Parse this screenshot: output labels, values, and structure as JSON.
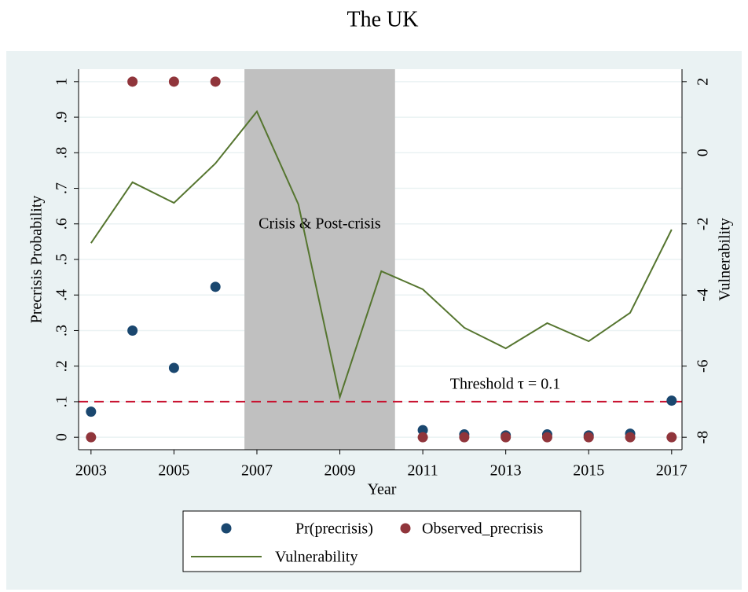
{
  "chart_data": {
    "type": "combo",
    "title": "The UK",
    "x_label": "Year",
    "y_label": "Precrisis Probability",
    "y2_label": "Vulnerability",
    "x": [
      2003,
      2004,
      2005,
      2006,
      2007,
      2008,
      2009,
      2010,
      2011,
      2012,
      2013,
      2014,
      2015,
      2016,
      2017
    ],
    "xlim": [
      2002.7,
      2017.25
    ],
    "xticks": [
      2003,
      2005,
      2007,
      2009,
      2011,
      2013,
      2015,
      2017
    ],
    "ylim": [
      -0.035,
      1.035
    ],
    "yticks": [
      0,
      {
        "value": 0.1,
        "label": ".1"
      },
      {
        "value": 0.2,
        "label": ".2"
      },
      {
        "value": 0.3,
        "label": ".3"
      },
      {
        "value": 0.4,
        "label": ".4"
      },
      {
        "value": 0.5,
        "label": ".5"
      },
      {
        "value": 0.6,
        "label": ".6"
      },
      {
        "value": 0.7,
        "label": ".7"
      },
      {
        "value": 0.8,
        "label": ".8"
      },
      {
        "value": 0.9,
        "label": ".9"
      },
      1
    ],
    "y2lim": [
      -8.35,
      2.35
    ],
    "y2ticks": [
      -8,
      -6,
      -4,
      -2,
      0,
      2
    ],
    "grid": true,
    "series": [
      {
        "name": "Pr(precrisis)",
        "type": "scatter",
        "color": "#1a476f",
        "values": [
          0.072,
          0.3,
          0.195,
          0.423,
          null,
          null,
          null,
          null,
          0.02,
          0.008,
          0.005,
          0.008,
          0.005,
          0.01,
          0.103
        ]
      },
      {
        "name": "Observed_precrisis",
        "type": "scatter",
        "color": "#90353b",
        "values": [
          0,
          1,
          1,
          1,
          null,
          null,
          null,
          null,
          0,
          0,
          0,
          0,
          0,
          0,
          0
        ]
      },
      {
        "name": "Vulnerability",
        "type": "line",
        "color": "#55752f",
        "axis": "y2",
        "values": [
          -2.54,
          -0.83,
          -1.41,
          -0.3,
          1.16,
          -1.45,
          -6.87,
          -3.33,
          -3.84,
          -4.92,
          -5.5,
          -4.79,
          -5.3,
          -4.5,
          -2.16
        ]
      }
    ],
    "shade": {
      "x": [
        2006.7,
        2010.33
      ],
      "label": "Crisis & Post-crisis",
      "color": "#c0c0c0"
    },
    "threshold": {
      "value": 0.1,
      "label": "Threshold τ = 0.1",
      "color": "#c8102e"
    }
  }
}
